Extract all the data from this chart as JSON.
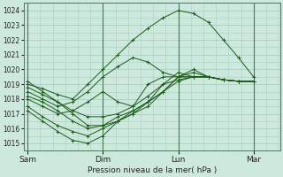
{
  "xlabel": "Pression niveau de la mer( hPa )",
  "xtick_labels": [
    "Sam",
    "Dim",
    "Lun",
    "Mar"
  ],
  "xtick_positions": [
    0,
    1,
    2,
    3
  ],
  "ylim": [
    1014.5,
    1024.5
  ],
  "yticks": [
    1015,
    1016,
    1017,
    1018,
    1019,
    1020,
    1021,
    1022,
    1023,
    1024
  ],
  "background_color": "#cde8dc",
  "grid_color": "#a8cfc0",
  "line_color": "#1a5c1a",
  "xlim": [
    -0.05,
    3.35
  ],
  "series": [
    [
      1019.0,
      1018.7,
      1018.3,
      1018.0,
      1019.0,
      1020.0,
      1021.0,
      1022.0,
      1022.8,
      1023.5,
      1024.0,
      1023.8,
      1023.2,
      1022.0,
      1020.8,
      1019.5
    ],
    [
      1018.5,
      1018.0,
      1017.5,
      1017.8,
      1018.5,
      1019.5,
      1020.2,
      1020.8,
      1020.5,
      1019.8,
      1019.5,
      1019.5,
      1019.5,
      1019.3,
      1019.2,
      1019.2
    ],
    [
      1018.0,
      1017.5,
      1017.0,
      1017.2,
      1017.8,
      1018.5,
      1017.8,
      1017.5,
      1019.0,
      1019.5,
      1019.5,
      1019.5,
      1019.5,
      1019.3,
      1019.2,
      1019.2
    ],
    [
      1017.5,
      1016.8,
      1016.2,
      1015.8,
      1015.5,
      1016.0,
      1016.5,
      1017.0,
      1017.8,
      1019.0,
      1019.8,
      1019.5,
      1019.5,
      1019.3,
      1019.2,
      1019.2
    ],
    [
      1017.2,
      1016.5,
      1015.8,
      1015.2,
      1015.0,
      1015.5,
      1016.5,
      1017.0,
      1017.5,
      1018.5,
      1019.5,
      1020.0,
      1019.5,
      1019.3,
      1019.2,
      1019.2
    ],
    [
      1018.2,
      1017.8,
      1017.2,
      1016.5,
      1016.0,
      1016.2,
      1016.5,
      1017.2,
      1017.8,
      1018.5,
      1019.5,
      1019.8,
      1019.5,
      1019.3,
      1019.2,
      1019.2
    ],
    [
      1018.8,
      1018.3,
      1017.8,
      1017.2,
      1016.8,
      1016.8,
      1017.0,
      1017.5,
      1018.2,
      1019.0,
      1019.3,
      1019.5,
      1019.5,
      1019.3,
      1019.2,
      1019.2
    ],
    [
      1019.2,
      1018.5,
      1017.8,
      1017.0,
      1016.2,
      1016.2,
      1016.8,
      1017.2,
      1017.8,
      1018.5,
      1019.2,
      1019.5,
      1019.5,
      1019.3,
      1019.2,
      1019.2
    ]
  ],
  "n_points": 16
}
